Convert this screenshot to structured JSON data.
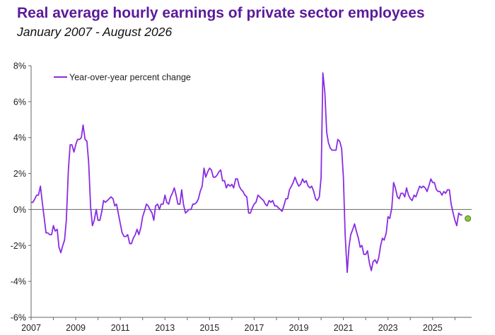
{
  "header": {
    "title": "Real average hourly earnings of private sector employees",
    "subtitle": "January 2007 - August 2026"
  },
  "chart_data": {
    "type": "line",
    "title": "Real average hourly earnings of private sector employees",
    "subtitle": "January 2007 - August 2026",
    "xlabel": "",
    "ylabel": "",
    "xlim": [
      2007,
      2026.75
    ],
    "ylim": [
      -6,
      8
    ],
    "x_ticks": [
      "2007",
      "2009",
      "2011",
      "2013",
      "2015",
      "2017",
      "2019",
      "2021",
      "2023",
      "2025"
    ],
    "x_tick_values": [
      2007,
      2009,
      2011,
      2013,
      2015,
      2017,
      2019,
      2021,
      2023,
      2025
    ],
    "y_ticks": [
      "-6%",
      "-4%",
      "-2%",
      "0%",
      "2%",
      "4%",
      "6%",
      "8%"
    ],
    "y_tick_values": [
      -6,
      -4,
      -2,
      0,
      2,
      4,
      6,
      8
    ],
    "grid": false,
    "legend_position": "top-left",
    "zero_line": true,
    "colors": {
      "line": "#8a2be2",
      "marker": "#8cc63f",
      "axis": "#666666"
    },
    "series": [
      {
        "name": "Year-over-year percent change",
        "points": [
          [
            2007.0,
            0.4
          ],
          [
            2007.08,
            0.4
          ],
          [
            2007.17,
            0.6
          ],
          [
            2007.25,
            0.8
          ],
          [
            2007.33,
            0.8
          ],
          [
            2007.42,
            1.3
          ],
          [
            2007.5,
            0.4
          ],
          [
            2007.58,
            -0.4
          ],
          [
            2007.67,
            -1.3
          ],
          [
            2007.75,
            -1.3
          ],
          [
            2007.83,
            -1.4
          ],
          [
            2007.92,
            -1.4
          ],
          [
            2008.0,
            -0.9
          ],
          [
            2008.08,
            -1.2
          ],
          [
            2008.17,
            -1.1
          ],
          [
            2008.25,
            -2.1
          ],
          [
            2008.33,
            -2.4
          ],
          [
            2008.42,
            -2.0
          ],
          [
            2008.5,
            -1.7
          ],
          [
            2008.58,
            -0.6
          ],
          [
            2008.67,
            2.2
          ],
          [
            2008.75,
            3.6
          ],
          [
            2008.83,
            3.6
          ],
          [
            2008.92,
            3.2
          ],
          [
            2009.0,
            3.6
          ],
          [
            2009.08,
            3.9
          ],
          [
            2009.17,
            3.9
          ],
          [
            2009.25,
            4.0
          ],
          [
            2009.33,
            4.7
          ],
          [
            2009.42,
            3.9
          ],
          [
            2009.5,
            3.8
          ],
          [
            2009.58,
            2.6
          ],
          [
            2009.67,
            0.1
          ],
          [
            2009.75,
            -0.9
          ],
          [
            2009.83,
            -0.6
          ],
          [
            2009.92,
            0.0
          ],
          [
            2010.0,
            -0.6
          ],
          [
            2010.08,
            -0.6
          ],
          [
            2010.17,
            -0.1
          ],
          [
            2010.25,
            0.5
          ],
          [
            2010.33,
            0.4
          ],
          [
            2010.42,
            0.5
          ],
          [
            2010.5,
            0.6
          ],
          [
            2010.58,
            0.7
          ],
          [
            2010.67,
            0.6
          ],
          [
            2010.75,
            0.2
          ],
          [
            2010.83,
            0.3
          ],
          [
            2010.92,
            -0.3
          ],
          [
            2011.0,
            -0.8
          ],
          [
            2011.08,
            -1.3
          ],
          [
            2011.17,
            -1.5
          ],
          [
            2011.25,
            -1.5
          ],
          [
            2011.33,
            -1.4
          ],
          [
            2011.42,
            -1.9
          ],
          [
            2011.5,
            -1.9
          ],
          [
            2011.58,
            -1.6
          ],
          [
            2011.67,
            -1.4
          ],
          [
            2011.75,
            -1.1
          ],
          [
            2011.83,
            -1.4
          ],
          [
            2011.92,
            -1.0
          ],
          [
            2012.0,
            -0.4
          ],
          [
            2012.08,
            -0.1
          ],
          [
            2012.17,
            0.3
          ],
          [
            2012.25,
            0.2
          ],
          [
            2012.33,
            0.0
          ],
          [
            2012.42,
            -0.2
          ],
          [
            2012.5,
            -0.6
          ],
          [
            2012.58,
            0.2
          ],
          [
            2012.67,
            0.3
          ],
          [
            2012.75,
            0.0
          ],
          [
            2012.83,
            0.3
          ],
          [
            2012.92,
            0.3
          ],
          [
            2013.0,
            0.8
          ],
          [
            2013.08,
            0.4
          ],
          [
            2013.17,
            0.3
          ],
          [
            2013.25,
            0.7
          ],
          [
            2013.33,
            0.9
          ],
          [
            2013.42,
            1.2
          ],
          [
            2013.5,
            0.8
          ],
          [
            2013.58,
            0.3
          ],
          [
            2013.67,
            0.3
          ],
          [
            2013.75,
            1.1
          ],
          [
            2013.83,
            0.3
          ],
          [
            2013.92,
            -0.2
          ],
          [
            2014.0,
            -0.1
          ],
          [
            2014.08,
            0.0
          ],
          [
            2014.17,
            0.0
          ],
          [
            2014.25,
            0.3
          ],
          [
            2014.33,
            0.3
          ],
          [
            2014.42,
            0.4
          ],
          [
            2014.5,
            0.6
          ],
          [
            2014.58,
            1.0
          ],
          [
            2014.67,
            1.3
          ],
          [
            2014.75,
            2.3
          ],
          [
            2014.83,
            1.8
          ],
          [
            2014.92,
            2.1
          ],
          [
            2015.0,
            2.3
          ],
          [
            2015.08,
            2.2
          ],
          [
            2015.17,
            1.8
          ],
          [
            2015.25,
            1.8
          ],
          [
            2015.33,
            1.9
          ],
          [
            2015.42,
            2.1
          ],
          [
            2015.5,
            2.2
          ],
          [
            2015.58,
            1.6
          ],
          [
            2015.67,
            1.6
          ],
          [
            2015.75,
            1.2
          ],
          [
            2015.83,
            1.4
          ],
          [
            2015.92,
            1.3
          ],
          [
            2016.0,
            1.4
          ],
          [
            2016.08,
            1.2
          ],
          [
            2016.17,
            1.7
          ],
          [
            2016.25,
            1.7
          ],
          [
            2016.33,
            1.3
          ],
          [
            2016.42,
            1.1
          ],
          [
            2016.5,
            1.0
          ],
          [
            2016.58,
            0.8
          ],
          [
            2016.67,
            0.7
          ],
          [
            2016.75,
            -0.2
          ],
          [
            2016.83,
            -0.2
          ],
          [
            2016.92,
            0.1
          ],
          [
            2017.0,
            0.3
          ],
          [
            2017.08,
            0.4
          ],
          [
            2017.17,
            0.8
          ],
          [
            2017.25,
            0.7
          ],
          [
            2017.33,
            0.6
          ],
          [
            2017.42,
            0.5
          ],
          [
            2017.5,
            0.3
          ],
          [
            2017.58,
            0.2
          ],
          [
            2017.67,
            0.5
          ],
          [
            2017.75,
            0.4
          ],
          [
            2017.83,
            0.5
          ],
          [
            2017.92,
            0.2
          ],
          [
            2018.0,
            0.2
          ],
          [
            2018.08,
            0.1
          ],
          [
            2018.17,
            0.0
          ],
          [
            2018.25,
            -0.1
          ],
          [
            2018.33,
            0.2
          ],
          [
            2018.42,
            0.6
          ],
          [
            2018.5,
            0.6
          ],
          [
            2018.58,
            1.1
          ],
          [
            2018.67,
            1.3
          ],
          [
            2018.75,
            1.5
          ],
          [
            2018.83,
            1.8
          ],
          [
            2018.92,
            1.5
          ],
          [
            2019.0,
            1.3
          ],
          [
            2019.08,
            1.4
          ],
          [
            2019.17,
            1.7
          ],
          [
            2019.25,
            1.5
          ],
          [
            2019.33,
            1.6
          ],
          [
            2019.42,
            1.3
          ],
          [
            2019.5,
            1.2
          ],
          [
            2019.58,
            1.3
          ],
          [
            2019.67,
            1.0
          ],
          [
            2019.75,
            0.6
          ],
          [
            2019.83,
            0.5
          ],
          [
            2019.92,
            0.7
          ],
          [
            2020.0,
            1.8
          ],
          [
            2020.08,
            7.6
          ],
          [
            2020.17,
            6.5
          ],
          [
            2020.25,
            4.3
          ],
          [
            2020.33,
            3.7
          ],
          [
            2020.42,
            3.4
          ],
          [
            2020.5,
            3.3
          ],
          [
            2020.58,
            3.3
          ],
          [
            2020.67,
            3.3
          ],
          [
            2020.75,
            3.9
          ],
          [
            2020.83,
            3.8
          ],
          [
            2020.92,
            3.4
          ],
          [
            2021.0,
            1.8
          ],
          [
            2021.08,
            -1.4
          ],
          [
            2021.17,
            -3.5
          ],
          [
            2021.25,
            -2.1
          ],
          [
            2021.33,
            -1.4
          ],
          [
            2021.42,
            -1.1
          ],
          [
            2021.5,
            -0.8
          ],
          [
            2021.58,
            -1.2
          ],
          [
            2021.67,
            -1.6
          ],
          [
            2021.75,
            -2.1
          ],
          [
            2021.83,
            -2.0
          ],
          [
            2021.92,
            -2.5
          ],
          [
            2022.0,
            -2.5
          ],
          [
            2022.08,
            -2.3
          ],
          [
            2022.17,
            -3.0
          ],
          [
            2022.25,
            -3.4
          ],
          [
            2022.33,
            -2.9
          ],
          [
            2022.42,
            -2.8
          ],
          [
            2022.5,
            -3.0
          ],
          [
            2022.58,
            -2.7
          ],
          [
            2022.67,
            -2.0
          ],
          [
            2022.75,
            -1.6
          ],
          [
            2022.83,
            -1.7
          ],
          [
            2022.92,
            -1.3
          ],
          [
            2023.0,
            -0.4
          ],
          [
            2023.08,
            -0.5
          ],
          [
            2023.17,
            0.1
          ],
          [
            2023.25,
            1.5
          ],
          [
            2023.33,
            1.2
          ],
          [
            2023.42,
            0.7
          ],
          [
            2023.5,
            0.6
          ],
          [
            2023.58,
            0.9
          ],
          [
            2023.67,
            0.9
          ],
          [
            2023.75,
            0.7
          ],
          [
            2023.83,
            1.2
          ],
          [
            2023.92,
            0.8
          ],
          [
            2024.0,
            0.6
          ],
          [
            2024.08,
            0.5
          ],
          [
            2024.17,
            0.8
          ],
          [
            2024.25,
            0.7
          ],
          [
            2024.33,
            1.0
          ],
          [
            2024.42,
            1.3
          ],
          [
            2024.5,
            1.2
          ],
          [
            2024.58,
            1.3
          ],
          [
            2024.67,
            1.2
          ],
          [
            2024.75,
            1.0
          ],
          [
            2024.83,
            1.3
          ],
          [
            2024.92,
            1.7
          ],
          [
            2025.0,
            1.5
          ],
          [
            2025.08,
            1.5
          ],
          [
            2025.17,
            1.1
          ],
          [
            2025.25,
            1.0
          ],
          [
            2025.33,
            1.0
          ],
          [
            2025.42,
            0.8
          ],
          [
            2025.5,
            1.0
          ],
          [
            2025.58,
            0.9
          ],
          [
            2025.67,
            1.1
          ],
          [
            2025.75,
            1.1
          ],
          [
            2025.83,
            0.3
          ],
          [
            2025.92,
            -0.2
          ],
          [
            2026.0,
            -0.6
          ],
          [
            2026.08,
            -0.9
          ],
          [
            2026.17,
            -0.2
          ],
          [
            2026.25,
            -0.3
          ],
          [
            2026.33,
            -0.3
          ]
        ]
      }
    ],
    "annotations": [
      {
        "type": "marker",
        "x": 2026.58,
        "y": -0.5
      }
    ]
  }
}
